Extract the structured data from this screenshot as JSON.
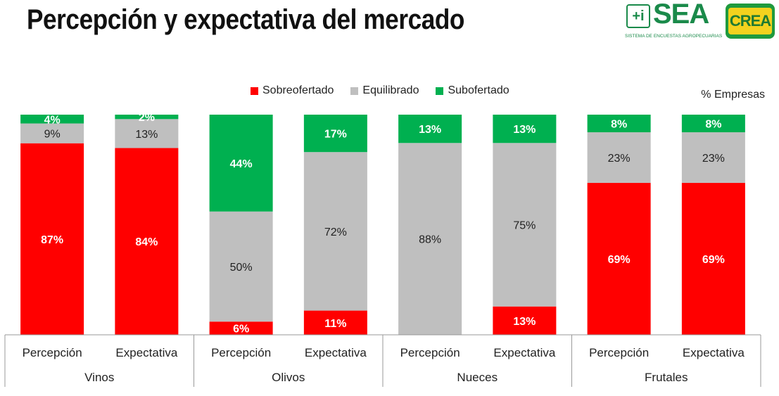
{
  "header": {
    "title": "Percepción y expectativa del mercado",
    "logo_sea": "SEA",
    "logo_sea_sub": "SISTEMA DE ENCUESTAS AGROPECUARIAS",
    "logo_sea_icon": "+i",
    "logo_crea": "CREA"
  },
  "chart_data": {
    "type": "bar",
    "stacked": true,
    "units_label": "% Empresas",
    "legend": [
      {
        "name": "Sobreofertado",
        "color": "#ff0000"
      },
      {
        "name": "Equilibrado",
        "color": "#bfbfbf"
      },
      {
        "name": "Subofertado",
        "color": "#00b050"
      }
    ],
    "groups": [
      "Vinos",
      "Olivos",
      "Nueces",
      "Frutales"
    ],
    "categories": [
      "Percepción",
      "Expectativa",
      "Percepción",
      "Expectativa",
      "Percepción",
      "Expectativa",
      "Percepción",
      "Expectativa"
    ],
    "series": [
      {
        "name": "Sobreofertado",
        "values": [
          87,
          84,
          6,
          11,
          0,
          13,
          69,
          69
        ],
        "labels": [
          "87%",
          "84%",
          "6%",
          "11%",
          "",
          "13%",
          "69%",
          "69%"
        ]
      },
      {
        "name": "Equilibrado",
        "values": [
          9,
          13,
          50,
          72,
          88,
          75,
          23,
          23
        ],
        "labels": [
          "9%",
          "13%",
          "50%",
          "72%",
          "88%",
          "75%",
          "23%",
          "23%"
        ]
      },
      {
        "name": "Subofertado",
        "values": [
          4,
          2,
          44,
          17,
          13,
          13,
          8,
          8
        ],
        "labels": [
          "4%",
          "2%",
          "44%",
          "17%",
          "13%",
          "13%",
          "8%",
          "8%"
        ]
      }
    ],
    "ylim": [
      0,
      100
    ]
  }
}
